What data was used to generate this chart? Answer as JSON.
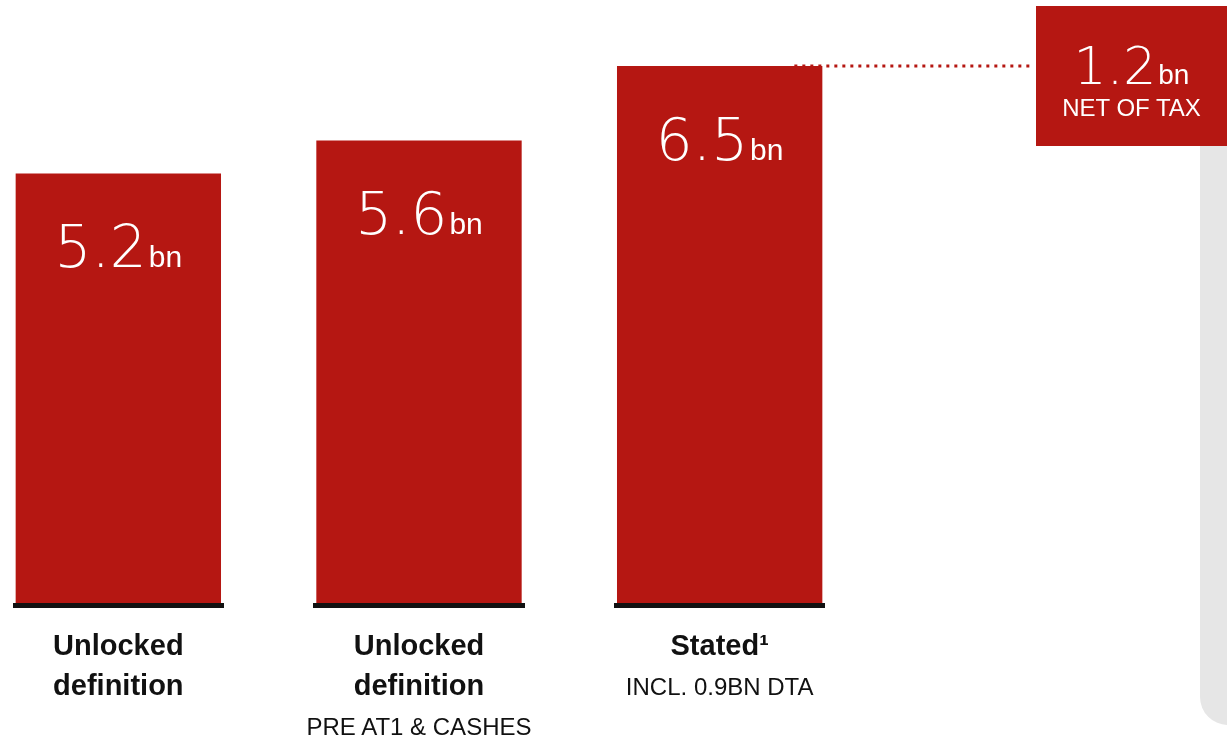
{
  "chart_data": {
    "type": "bar",
    "categories": [
      "Unlocked\ndefinition",
      "Unlocked\ndefinition\nPRE AT1 & CASHES",
      "Stated¹\nINCL. 0.9BN DTA"
    ],
    "values": [
      5.2,
      5.6,
      6.5
    ],
    "value_labels": [
      "5.2bn",
      "5.6bn",
      "6.5bn"
    ],
    "color": "#b51712",
    "ylim": [
      0,
      7.3
    ],
    "tick_labels": "x",
    "annotations": [
      "1.2bn\nNET OF TAX"
    ]
  }
}
